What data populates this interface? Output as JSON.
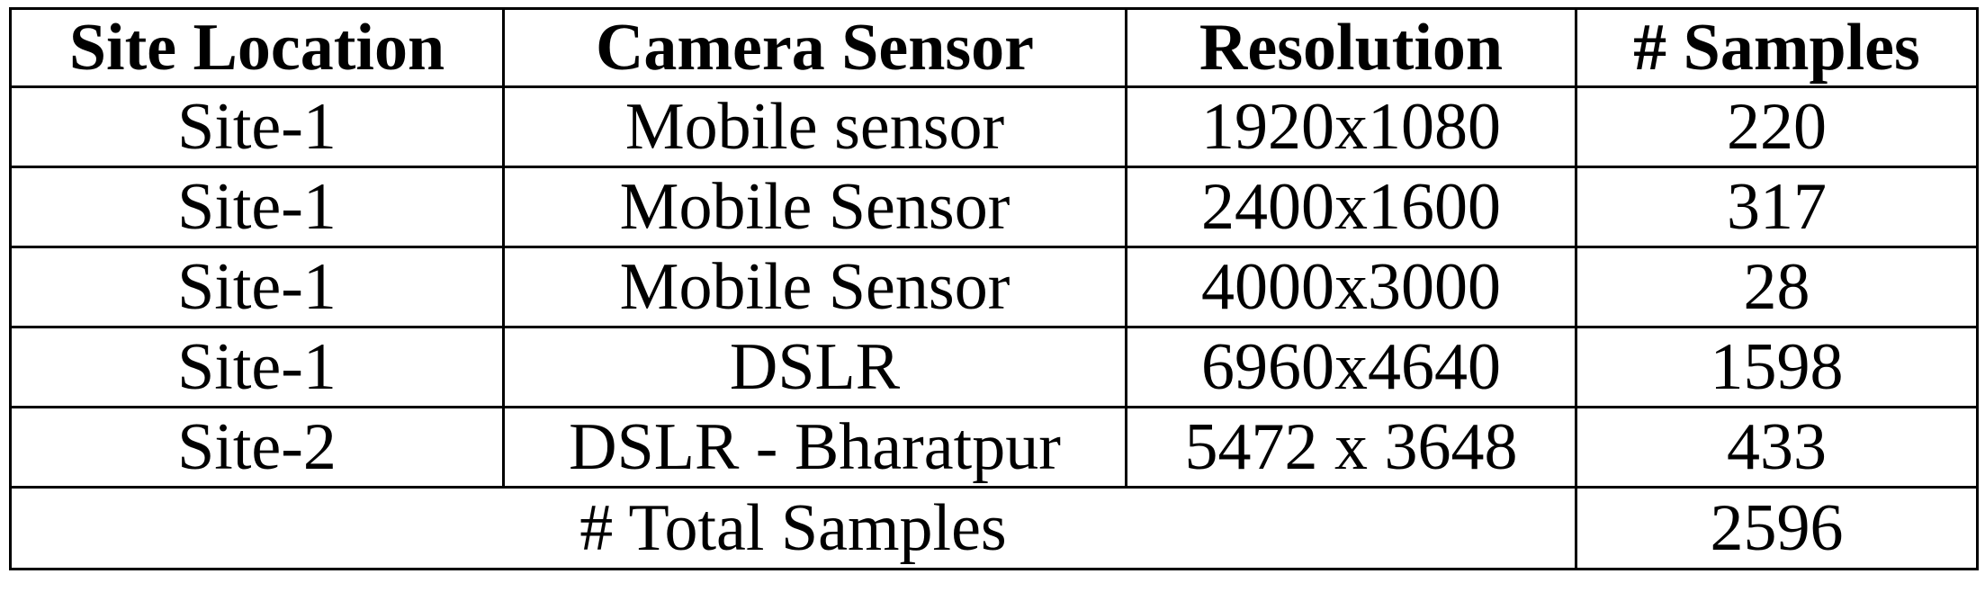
{
  "table": {
    "headers": [
      "Site Location",
      "Camera Sensor",
      "Resolution",
      "# Samples"
    ],
    "rows": [
      [
        "Site-1",
        "Mobile sensor",
        "1920x1080",
        "220"
      ],
      [
        "Site-1",
        "Mobile Sensor",
        "2400x1600",
        "317"
      ],
      [
        "Site-1",
        "Mobile Sensor",
        "4000x3000",
        "28"
      ],
      [
        "Site-1",
        "DSLR",
        "6960x4640",
        "1598"
      ],
      [
        "Site-2",
        "DSLR - Bharatpur",
        "5472 x 3648",
        "433"
      ]
    ],
    "total": {
      "label": "# Total Samples",
      "value": "2596"
    }
  }
}
